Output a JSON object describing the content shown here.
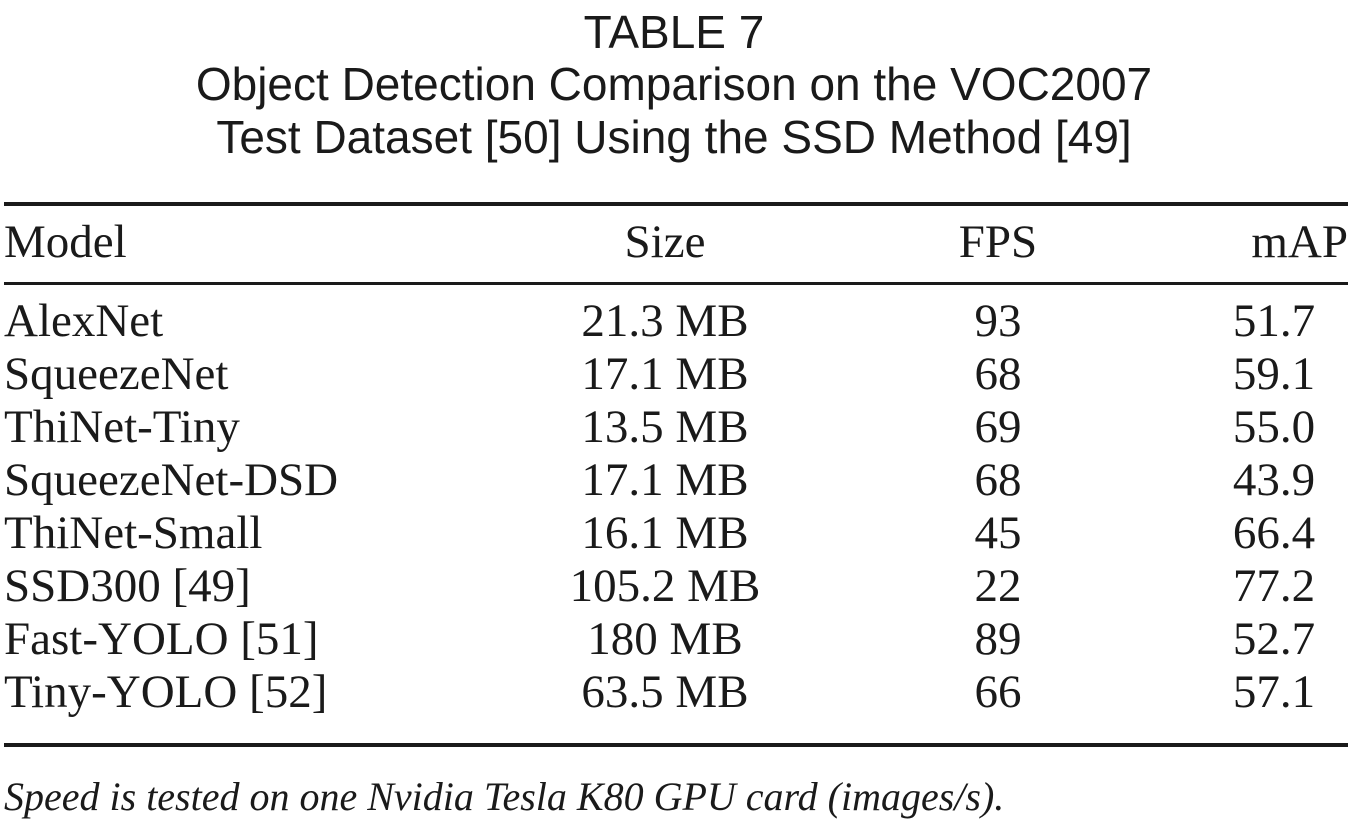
{
  "caption": {
    "label": "TABLE 7",
    "title_line1": "Object Detection Comparison on the VOC2007",
    "title_line2": "Test Dataset [50] Using the SSD Method [49]"
  },
  "table": {
    "columns": [
      "Model",
      "Size",
      "FPS",
      "mAP"
    ],
    "rows": [
      [
        "AlexNet",
        "21.3 MB",
        "93",
        "51.7"
      ],
      [
        "SqueezeNet",
        "17.1 MB",
        "68",
        "59.1"
      ],
      [
        "ThiNet-Tiny",
        "13.5 MB",
        "69",
        "55.0"
      ],
      [
        "SqueezeNet-DSD",
        "17.1 MB",
        "68",
        "43.9"
      ],
      [
        "ThiNet-Small",
        "16.1 MB",
        "45",
        "66.4"
      ],
      [
        "SSD300 [49]",
        "105.2 MB",
        "22",
        "77.2"
      ],
      [
        "Fast-YOLO [51]",
        "180 MB",
        "89",
        "52.7"
      ],
      [
        "Tiny-YOLO [52]",
        "63.5 MB",
        "66",
        "57.1"
      ]
    ]
  },
  "footnote": "Speed is tested on one Nvidia Tesla K80 GPU card (images/s)."
}
